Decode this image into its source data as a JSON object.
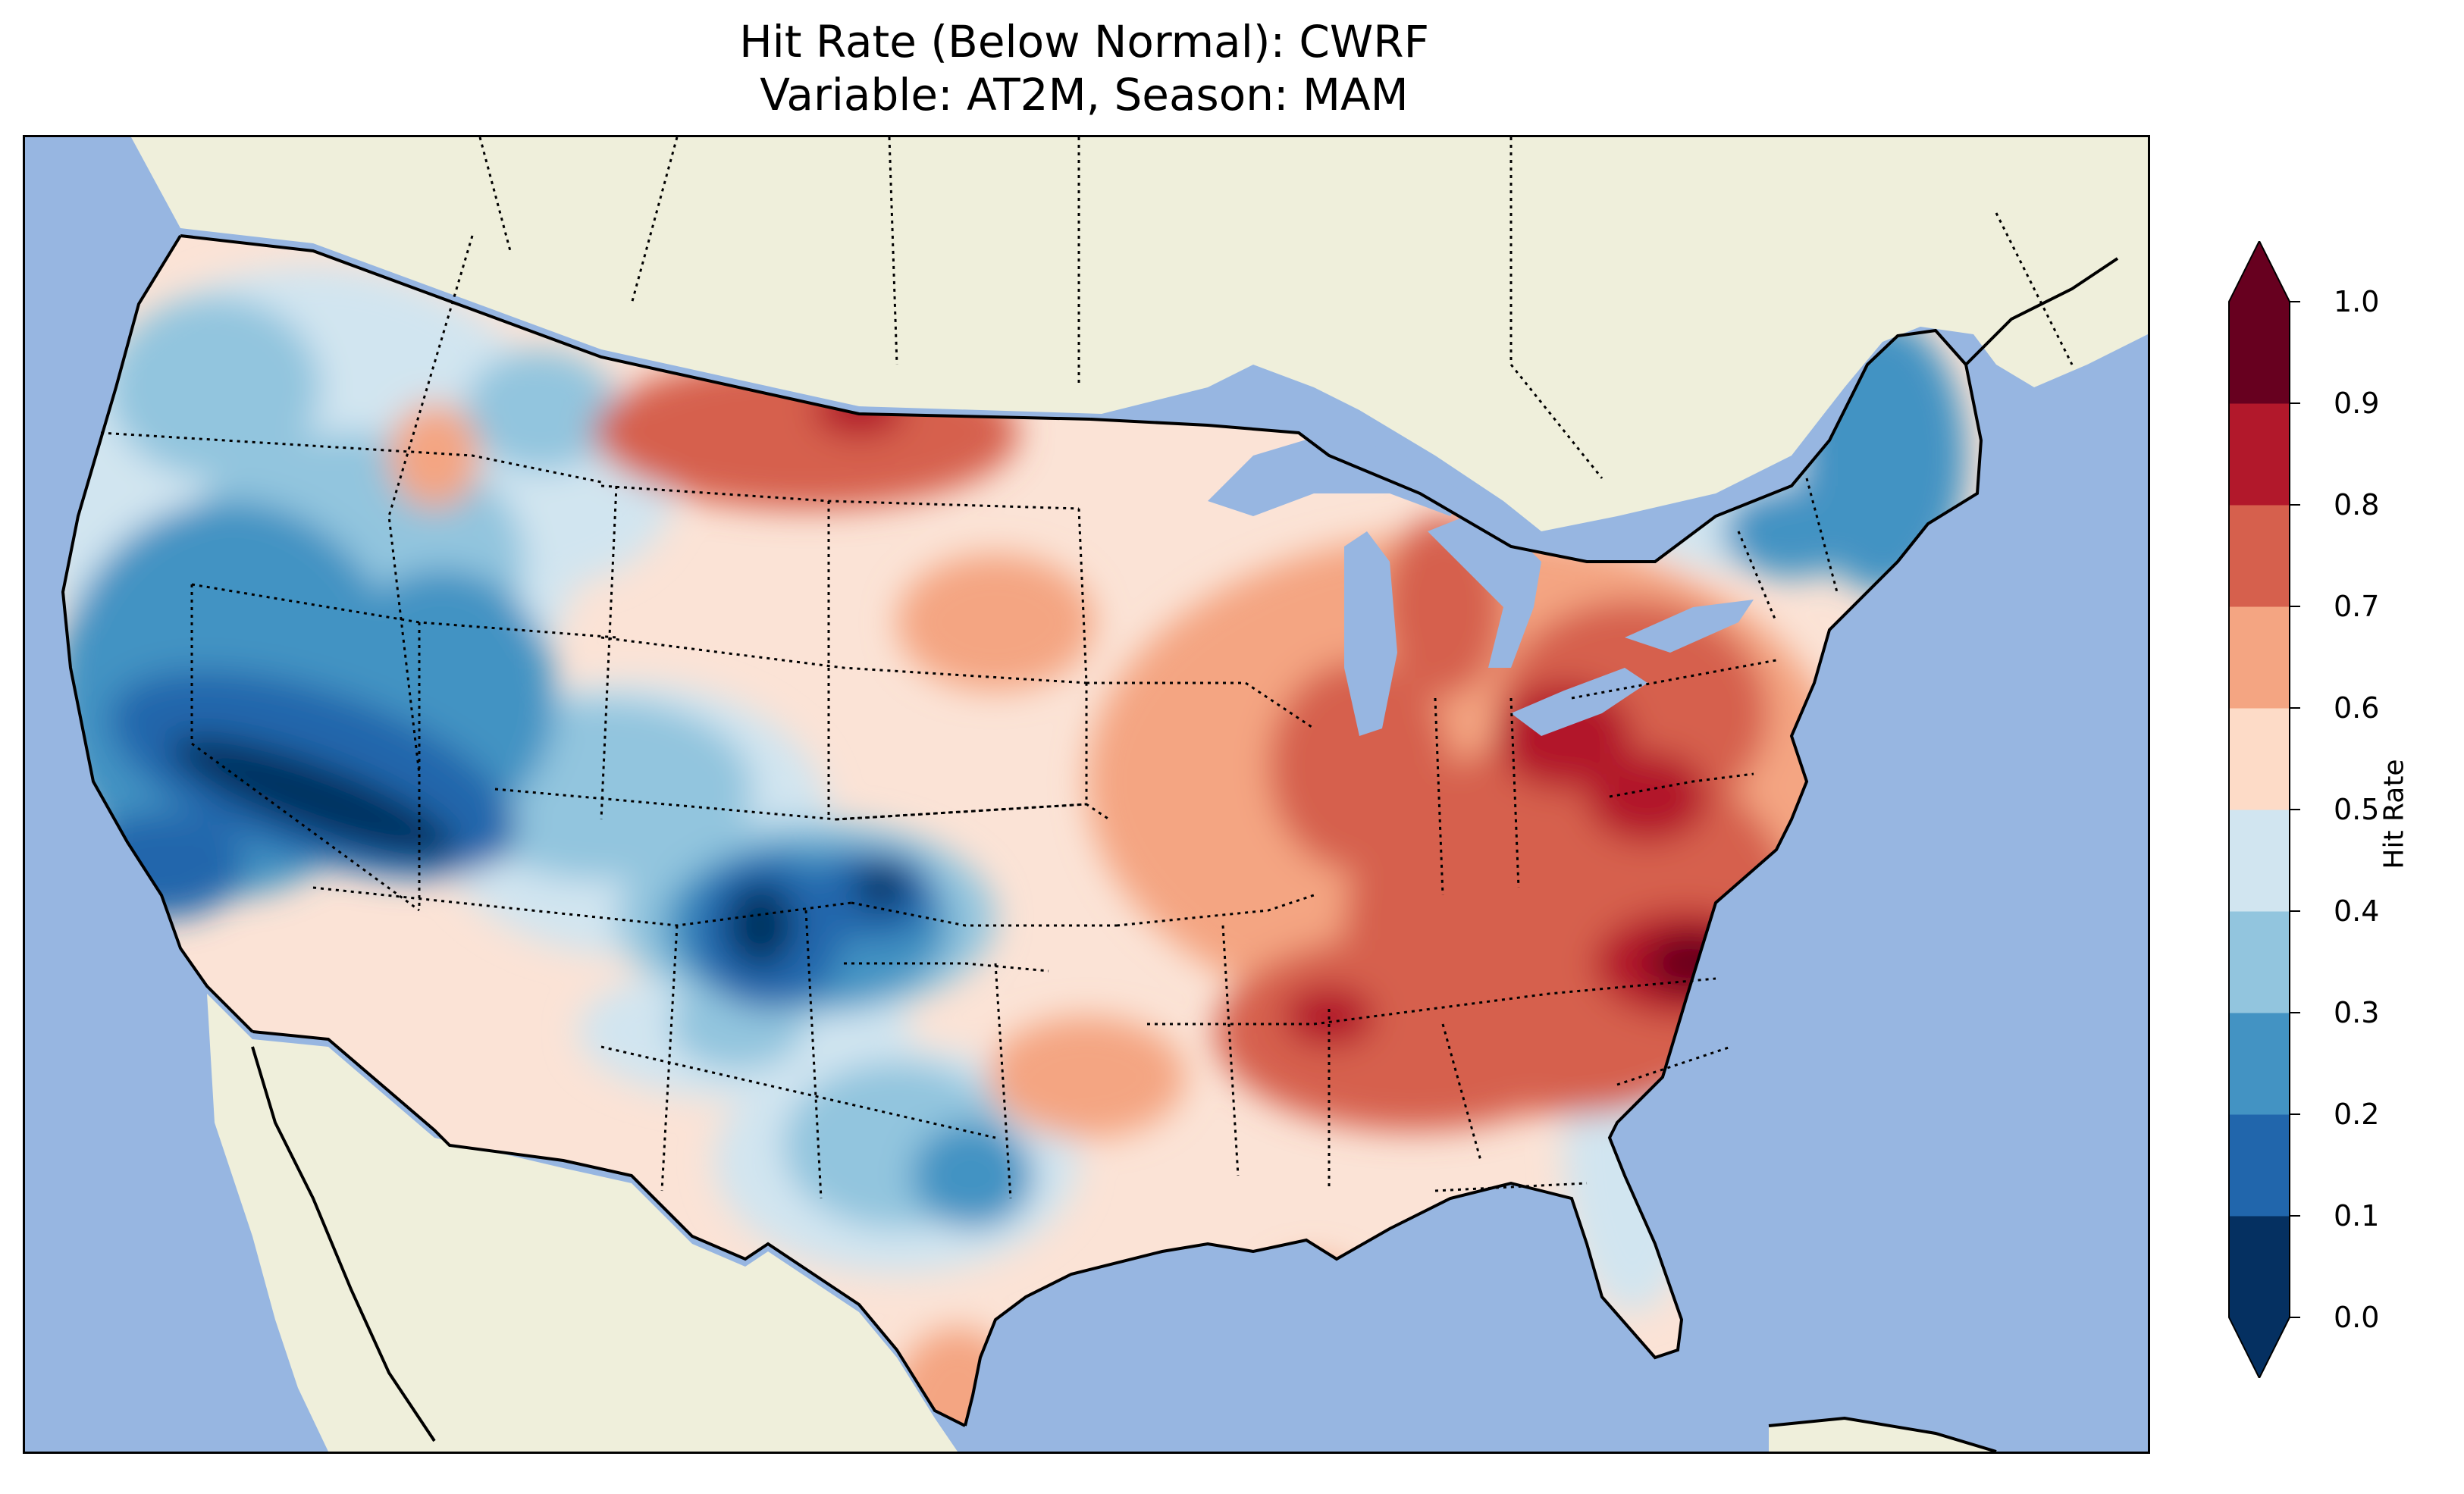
{
  "title": {
    "line1": "Hit Rate (Below Normal): CWRF",
    "line2": "Variable: AT2M, Season: MAM"
  },
  "colorbar": {
    "label": "Hit Rate",
    "ticks": [
      "0.0",
      "0.1",
      "0.2",
      "0.3",
      "0.4",
      "0.5",
      "0.6",
      "0.7",
      "0.8",
      "0.9",
      "1.0"
    ],
    "bins": [
      {
        "range": "0.0-0.1",
        "color": "#053061"
      },
      {
        "range": "0.1-0.2",
        "color": "#2166ac"
      },
      {
        "range": "0.2-0.3",
        "color": "#4393c3"
      },
      {
        "range": "0.3-0.4",
        "color": "#92c5de"
      },
      {
        "range": "0.4-0.5",
        "color": "#d1e5f0"
      },
      {
        "range": "0.5-0.6",
        "color": "#fddbc7"
      },
      {
        "range": "0.6-0.7",
        "color": "#f4a582"
      },
      {
        "range": "0.7-0.8",
        "color": "#d6604d"
      },
      {
        "range": "0.8-0.9",
        "color": "#b2182b"
      },
      {
        "range": "0.9-1.0",
        "color": "#67001f"
      }
    ],
    "extend": "both"
  },
  "map": {
    "ocean_color": "#97b6e1",
    "land_color": "#efefdb",
    "region": "Continental United States"
  },
  "regions": [
    {
      "area": "Southwest / Great Basin",
      "level": "0.0-0.2"
    },
    {
      "area": "Colorado / New Mexico",
      "level": "0.0-0.2"
    },
    {
      "area": "Maine / Northern New England",
      "level": "0.2-0.3"
    },
    {
      "area": "Central Texas",
      "level": "0.2-0.3"
    },
    {
      "area": "Northern Montana / North Dakota",
      "level": "0.7-0.9"
    },
    {
      "area": "Ohio Valley / Mid-Atlantic",
      "level": "0.7-0.9"
    },
    {
      "area": "North Carolina",
      "level": "0.9-1.0"
    },
    {
      "area": "Southeast",
      "level": "0.7-0.8"
    },
    {
      "area": "Central Plains",
      "level": "0.5-0.6"
    }
  ]
}
